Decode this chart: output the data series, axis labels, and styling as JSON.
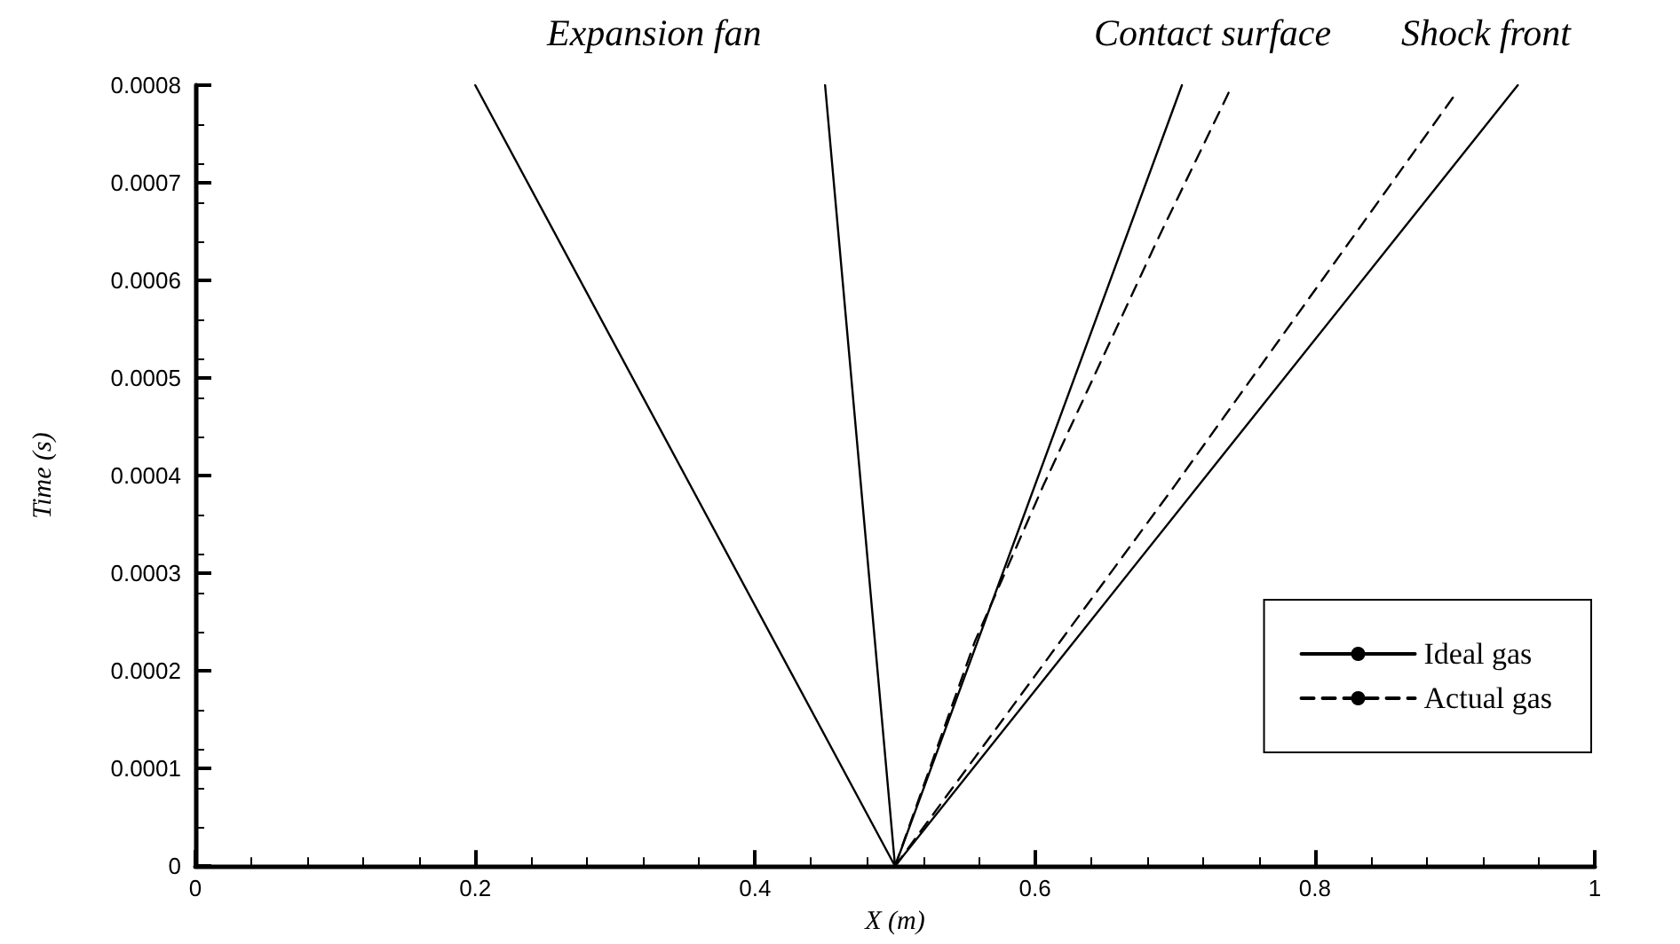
{
  "chart_data": {
    "type": "line",
    "xlabel": "X (m)",
    "ylabel": "Time (s)",
    "annotations": [
      "Expansion fan",
      "Contact surface",
      "Shock front"
    ],
    "series": [
      {
        "name": "Ideal gas",
        "color": "#000000",
        "line_style": "solid",
        "x": [
          0.5,
          0.2,
          null,
          0.5,
          0.45,
          null,
          0.5,
          0.705,
          null,
          0.5,
          0.945
        ],
        "values": [
          0,
          0.0008,
          null,
          0,
          0.0008,
          null,
          0,
          0.0008,
          null,
          0,
          0.0008
        ]
      },
      {
        "name": "Actual gas",
        "color": "#000000",
        "line_style": "dashed",
        "x": [
          0.5,
          0.557,
          0.606,
          0.687,
          0.741,
          null,
          0.5,
          0.7,
          0.9
        ],
        "values": [
          0,
          0.00023,
          0.00039,
          0.00064,
          0.0008,
          null,
          0,
          0.00039,
          0.00079
        ]
      }
    ],
    "xlim": [
      0,
      1
    ],
    "xticks": [
      0,
      0.2,
      0.4,
      0.6,
      0.8,
      1
    ],
    "ylim": [
      0,
      0.0008
    ],
    "yticks": [
      0,
      0.0001,
      0.0002,
      0.0003,
      0.0004,
      0.0005,
      0.0006,
      0.0007,
      0.0008
    ],
    "grid": false,
    "legend": "bottom right",
    "marker": "none"
  }
}
